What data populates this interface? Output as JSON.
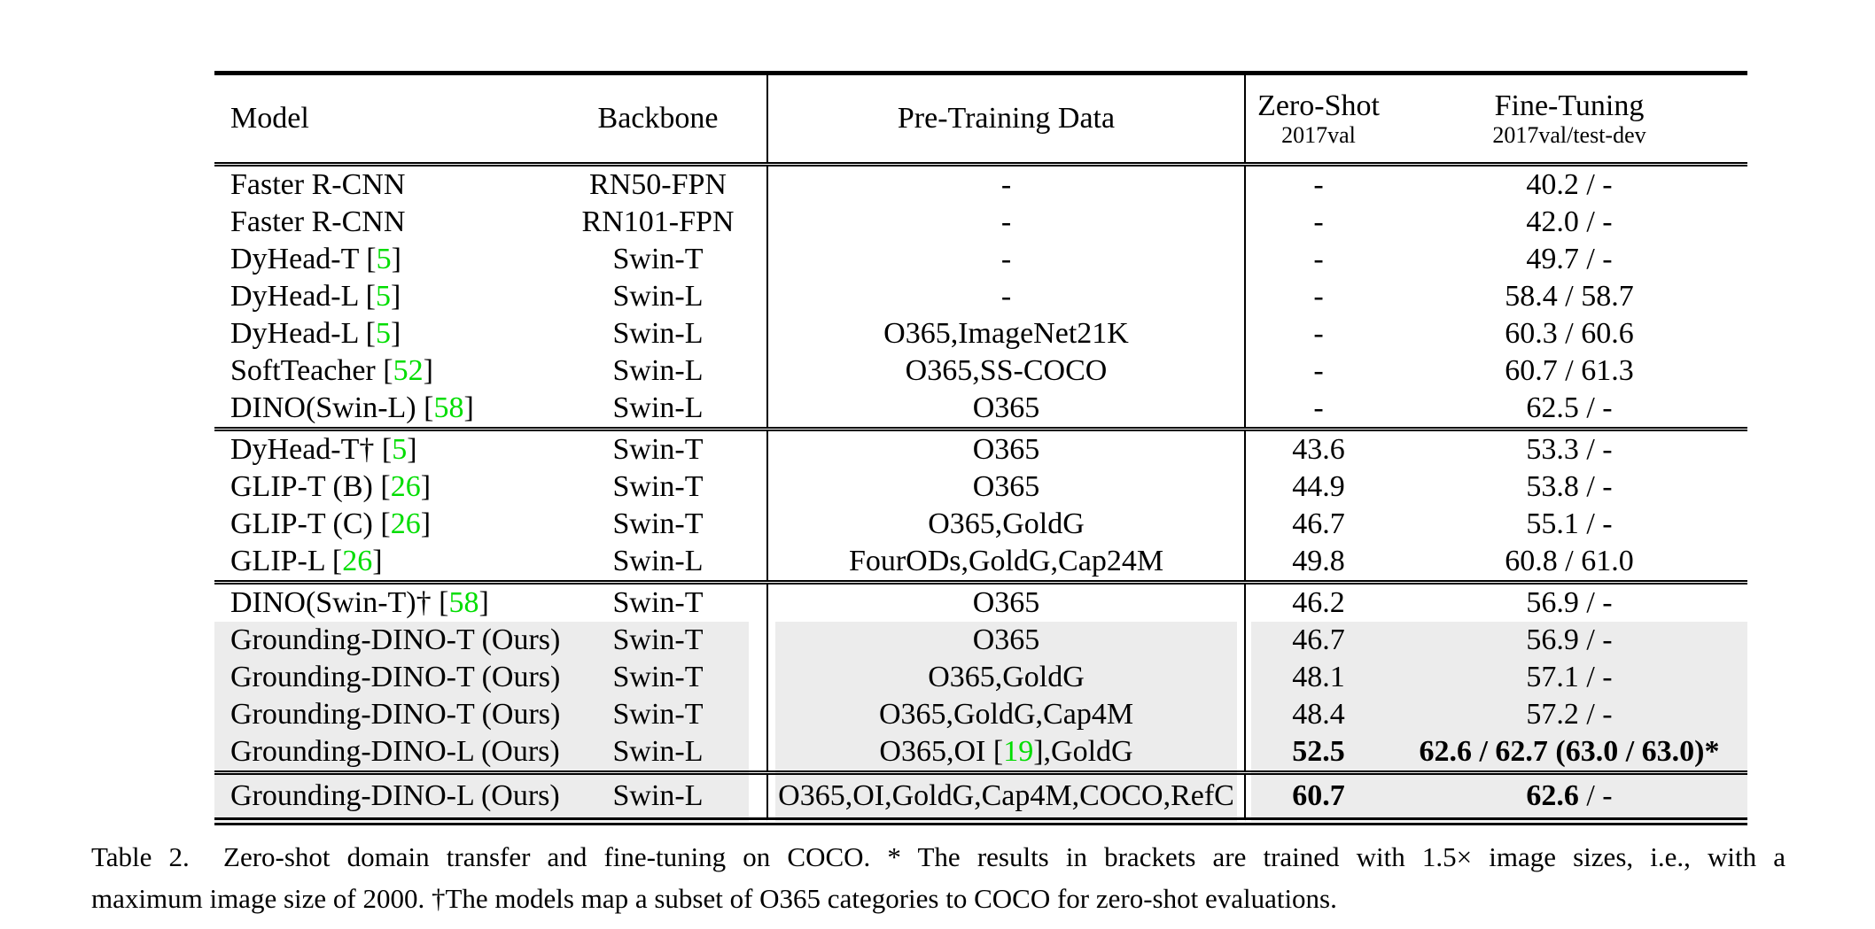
{
  "colors": {
    "citation_green": "#00DD00",
    "row_gray": "#ececec",
    "rule_black": "#000000"
  },
  "table": {
    "headers": {
      "model": "Model",
      "backbone": "Backbone",
      "pretrain": "Pre-Training Data",
      "zeroshot_title": "Zero-Shot",
      "zeroshot_sub": "2017val",
      "finetune_title": "Fine-Tuning",
      "finetune_sub": "2017val/test-dev"
    },
    "groups": [
      {
        "rows": [
          {
            "model": [
              {
                "t": "Faster R-CNN"
              }
            ],
            "backbone": "RN50-FPN",
            "pretrain": [
              {
                "t": "-"
              }
            ],
            "zeroshot": [
              {
                "t": "-"
              }
            ],
            "finetune": [
              {
                "t": "40.2 / -"
              }
            ]
          },
          {
            "model": [
              {
                "t": "Faster R-CNN"
              }
            ],
            "backbone": "RN101-FPN",
            "pretrain": [
              {
                "t": "-"
              }
            ],
            "zeroshot": [
              {
                "t": "-"
              }
            ],
            "finetune": [
              {
                "t": "42.0 / -"
              }
            ]
          },
          {
            "model": [
              {
                "t": "DyHead-T ["
              },
              {
                "t": "5",
                "g": true
              },
              {
                "t": "]"
              }
            ],
            "backbone": "Swin-T",
            "pretrain": [
              {
                "t": "-"
              }
            ],
            "zeroshot": [
              {
                "t": "-"
              }
            ],
            "finetune": [
              {
                "t": "49.7 / -"
              }
            ]
          },
          {
            "model": [
              {
                "t": "DyHead-L ["
              },
              {
                "t": "5",
                "g": true
              },
              {
                "t": "]"
              }
            ],
            "backbone": "Swin-L",
            "pretrain": [
              {
                "t": "-"
              }
            ],
            "zeroshot": [
              {
                "t": "-"
              }
            ],
            "finetune": [
              {
                "t": "58.4 / 58.7"
              }
            ]
          },
          {
            "model": [
              {
                "t": "DyHead-L ["
              },
              {
                "t": "5",
                "g": true
              },
              {
                "t": "]"
              }
            ],
            "backbone": "Swin-L",
            "pretrain": [
              {
                "t": "O365,ImageNet21K"
              }
            ],
            "zeroshot": [
              {
                "t": "-"
              }
            ],
            "finetune": [
              {
                "t": "60.3 / 60.6"
              }
            ]
          },
          {
            "model": [
              {
                "t": "SoftTeacher ["
              },
              {
                "t": "52",
                "g": true
              },
              {
                "t": "]"
              }
            ],
            "backbone": "Swin-L",
            "pretrain": [
              {
                "t": "O365,SS-COCO"
              }
            ],
            "zeroshot": [
              {
                "t": "-"
              }
            ],
            "finetune": [
              {
                "t": "60.7 / 61.3"
              }
            ]
          },
          {
            "model": [
              {
                "t": "DINO(Swin-L) ["
              },
              {
                "t": "58",
                "g": true
              },
              {
                "t": "]"
              }
            ],
            "backbone": "Swin-L",
            "pretrain": [
              {
                "t": "O365"
              }
            ],
            "zeroshot": [
              {
                "t": "-"
              }
            ],
            "finetune": [
              {
                "t": "62.5 / -"
              }
            ]
          }
        ]
      },
      {
        "rows": [
          {
            "model": [
              {
                "t": "DyHead-T† ["
              },
              {
                "t": "5",
                "g": true
              },
              {
                "t": "]"
              }
            ],
            "backbone": "Swin-T",
            "pretrain": [
              {
                "t": "O365"
              }
            ],
            "zeroshot": [
              {
                "t": "43.6"
              }
            ],
            "finetune": [
              {
                "t": "53.3 / -"
              }
            ]
          },
          {
            "model": [
              {
                "t": "GLIP-T (B) ["
              },
              {
                "t": "26",
                "g": true
              },
              {
                "t": "]"
              }
            ],
            "backbone": "Swin-T",
            "pretrain": [
              {
                "t": "O365"
              }
            ],
            "zeroshot": [
              {
                "t": "44.9"
              }
            ],
            "finetune": [
              {
                "t": "53.8 / -"
              }
            ]
          },
          {
            "model": [
              {
                "t": "GLIP-T (C) ["
              },
              {
                "t": "26",
                "g": true
              },
              {
                "t": "]"
              }
            ],
            "backbone": "Swin-T",
            "pretrain": [
              {
                "t": "O365,GoldG"
              }
            ],
            "zeroshot": [
              {
                "t": "46.7"
              }
            ],
            "finetune": [
              {
                "t": "55.1 / -"
              }
            ]
          },
          {
            "model": [
              {
                "t": "GLIP-L ["
              },
              {
                "t": "26",
                "g": true
              },
              {
                "t": "]"
              }
            ],
            "backbone": "Swin-L",
            "pretrain": [
              {
                "t": "FourODs,GoldG,Cap24M"
              }
            ],
            "zeroshot": [
              {
                "t": "49.8"
              }
            ],
            "finetune": [
              {
                "t": "60.8 / 61.0"
              }
            ]
          }
        ]
      },
      {
        "rows": [
          {
            "model": [
              {
                "t": "DINO(Swin-T)† ["
              },
              {
                "t": "58",
                "g": true
              },
              {
                "t": "]"
              }
            ],
            "backbone": "Swin-T",
            "pretrain": [
              {
                "t": "O365"
              }
            ],
            "zeroshot": [
              {
                "t": "46.2"
              }
            ],
            "finetune": [
              {
                "t": "56.9 / -"
              }
            ]
          },
          {
            "gray": true,
            "model": [
              {
                "t": "Grounding-DINO-T (Ours)"
              }
            ],
            "backbone": "Swin-T",
            "pretrain": [
              {
                "t": "O365"
              }
            ],
            "zeroshot": [
              {
                "t": "46.7"
              }
            ],
            "finetune": [
              {
                "t": "56.9 / -"
              }
            ]
          },
          {
            "gray": true,
            "model": [
              {
                "t": "Grounding-DINO-T (Ours)"
              }
            ],
            "backbone": "Swin-T",
            "pretrain": [
              {
                "t": "O365,GoldG"
              }
            ],
            "zeroshot": [
              {
                "t": "48.1"
              }
            ],
            "finetune": [
              {
                "t": "57.1 / -"
              }
            ]
          },
          {
            "gray": true,
            "model": [
              {
                "t": "Grounding-DINO-T (Ours)"
              }
            ],
            "backbone": "Swin-T",
            "pretrain": [
              {
                "t": "O365,GoldG,Cap4M"
              }
            ],
            "zeroshot": [
              {
                "t": "48.4"
              }
            ],
            "finetune": [
              {
                "t": "57.2 / -"
              }
            ]
          },
          {
            "gray": true,
            "model": [
              {
                "t": "Grounding-DINO-L (Ours)"
              }
            ],
            "backbone": "Swin-L",
            "pretrain": [
              {
                "t": "O365,OI ["
              },
              {
                "t": "19",
                "g": true
              },
              {
                "t": "],GoldG"
              }
            ],
            "zeroshot": [
              {
                "t": "52.5",
                "b": true
              }
            ],
            "finetune": [
              {
                "t": "62.6 / 62.7 (63.0 / 63.0)*",
                "b": true
              }
            ]
          }
        ]
      },
      {
        "rows": [
          {
            "gray": true,
            "model": [
              {
                "t": "Grounding-DINO-L (Ours)"
              }
            ],
            "backbone": "Swin-L",
            "pretrain": [
              {
                "t": "O365,OI,GoldG,Cap4M,COCO,RefC"
              }
            ],
            "zeroshot": [
              {
                "t": "60.7",
                "b": true
              }
            ],
            "finetune": [
              {
                "t": "62.6",
                "b": true
              },
              {
                "t": " / -"
              }
            ]
          }
        ]
      }
    ]
  },
  "caption": {
    "line1": "Table 2.  Zero-shot domain transfer and fine-tuning on COCO. * The results in brackets are trained with 1.5× image sizes, i.e., with a",
    "line2": "maximum image size of 2000. †The models map a subset of O365 categories to COCO for zero-shot evaluations."
  }
}
